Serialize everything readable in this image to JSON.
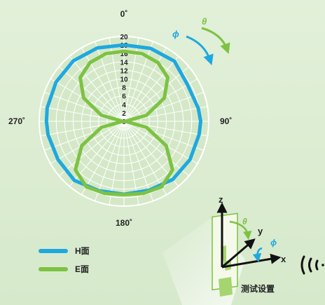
{
  "chart_data": {
    "type": "polar",
    "angle_unit": "degrees",
    "angle_direction": "clockwise",
    "angle_zero": "top",
    "angle_labels": [
      "0˚",
      "90˚",
      "180˚",
      "270˚"
    ],
    "radial_ticks": [
      "0",
      "2",
      "4",
      "6",
      "8",
      "10",
      "12",
      "14",
      "16",
      "18",
      "20"
    ],
    "rlim": [
      0,
      20
    ],
    "grid": true,
    "legend_position": "bottom-left",
    "series": [
      {
        "name": "H面",
        "color": "#1ea8e0",
        "theta": [
          0,
          20,
          40,
          60,
          80,
          90,
          100,
          120,
          140,
          160,
          180,
          200,
          220,
          240,
          260,
          270,
          280,
          300,
          320,
          340,
          360
        ],
        "r": [
          18.0,
          18.3,
          18.5,
          17.3,
          17.8,
          18.1,
          18.0,
          18.0,
          17.9,
          17.3,
          17.2,
          17.4,
          18.2,
          18.0,
          18.2,
          18.3,
          18.4,
          18.5,
          18.6,
          18.4,
          18.0
        ]
      },
      {
        "name": "E面",
        "color": "#7dc243",
        "theta": [
          0,
          15,
          30,
          45,
          60,
          75,
          90,
          105,
          120,
          135,
          150,
          165,
          180,
          195,
          210,
          225,
          240,
          255,
          270,
          285,
          300,
          315,
          330,
          345,
          360
        ],
        "r": [
          16.5,
          16.5,
          16.0,
          14.6,
          11.0,
          5.5,
          0.3,
          5.5,
          11.5,
          16.2,
          17.8,
          17.6,
          17.3,
          17.6,
          17.8,
          16.2,
          11.5,
          5.5,
          0.3,
          5.5,
          11.0,
          14.6,
          16.0,
          16.5,
          16.5
        ]
      }
    ]
  },
  "legend": [
    {
      "label": "H面",
      "color": "#1ea8e0"
    },
    {
      "label": "E面",
      "color": "#7dc243"
    }
  ],
  "rotation_labels": {
    "phi": "ϕ",
    "theta": "θ"
  },
  "setup": {
    "title": "测试设置",
    "axis_x": "x",
    "axis_y": "y",
    "axis_z": "z",
    "theta": "θ",
    "phi": "ϕ",
    "signal_icon": "radio-wave-icon"
  }
}
